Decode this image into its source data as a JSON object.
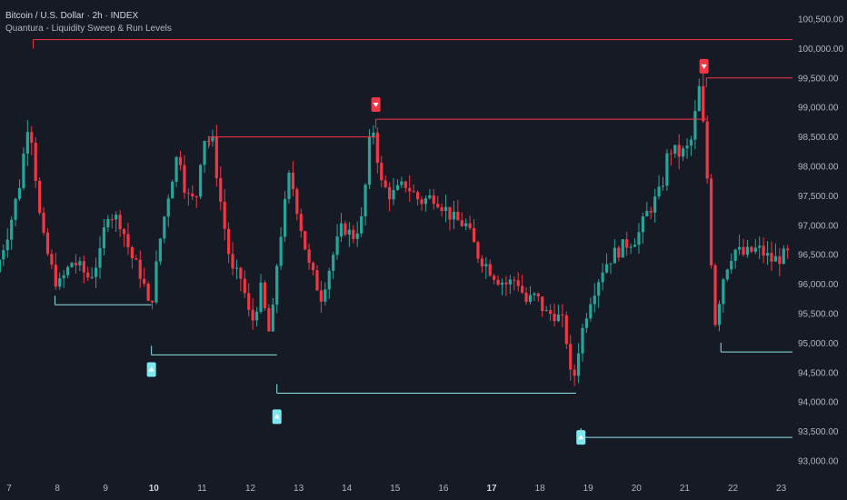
{
  "header": {
    "title": "Bitcoin / U.S. Dollar · 2h · INDEX",
    "subtitle": "Quantura - Liquidity Sweep & Run Levels"
  },
  "colors": {
    "background": "#161a25",
    "up": "#26a69a",
    "down": "#f23645",
    "sweep_high": "#f23645",
    "sweep_low": "#7ee8f0",
    "level_high": "#f23645",
    "level_low": "#8fe3ea",
    "axis_text": "#b2b5be"
  },
  "chart_data": {
    "type": "candlestick",
    "ylim": [
      92900,
      100700
    ],
    "y_ticks": [
      "100,500.00",
      "100,000.00",
      "99,500.00",
      "99,000.00",
      "98,500.00",
      "98,000.00",
      "97,500.00",
      "97,000.00",
      "96,500.00",
      "96,000.00",
      "95,500.00",
      "95,000.00",
      "94,500.00",
      "94,000.00",
      "93,500.00",
      "93,000.00"
    ],
    "x_ticks": [
      {
        "label": "7",
        "bold": false
      },
      {
        "label": "8",
        "bold": false
      },
      {
        "label": "9",
        "bold": false
      },
      {
        "label": "10",
        "bold": true
      },
      {
        "label": "11",
        "bold": false
      },
      {
        "label": "12",
        "bold": false
      },
      {
        "label": "13",
        "bold": false
      },
      {
        "label": "14",
        "bold": false
      },
      {
        "label": "15",
        "bold": false
      },
      {
        "label": "16",
        "bold": false
      },
      {
        "label": "17",
        "bold": true
      },
      {
        "label": "18",
        "bold": false
      },
      {
        "label": "19",
        "bold": false
      },
      {
        "label": "20",
        "bold": false
      },
      {
        "label": "21",
        "bold": false
      },
      {
        "label": "22",
        "bold": false
      },
      {
        "label": "23",
        "bold": false
      }
    ],
    "price_path": [
      [
        6.8,
        96200
      ],
      [
        7.1,
        97000
      ],
      [
        7.3,
        97700
      ],
      [
        7.5,
        98900
      ],
      [
        7.75,
        96900
      ],
      [
        7.95,
        96300
      ],
      [
        8.1,
        95950
      ],
      [
        8.4,
        96400
      ],
      [
        8.75,
        96100
      ],
      [
        9.0,
        96550
      ],
      [
        9.1,
        97250
      ],
      [
        9.4,
        97050
      ],
      [
        9.6,
        96500
      ],
      [
        9.85,
        96100
      ],
      [
        10.0,
        95500
      ],
      [
        10.2,
        96700
      ],
      [
        10.4,
        97600
      ],
      [
        10.6,
        98300
      ],
      [
        10.75,
        97500
      ],
      [
        10.95,
        97400
      ],
      [
        11.1,
        98500
      ],
      [
        11.3,
        98400
      ],
      [
        11.5,
        97200
      ],
      [
        11.7,
        96200
      ],
      [
        11.9,
        96100
      ],
      [
        12.1,
        95300
      ],
      [
        12.3,
        95900
      ],
      [
        12.5,
        95050
      ],
      [
        12.65,
        96500
      ],
      [
        12.9,
        97900
      ],
      [
        13.1,
        97100
      ],
      [
        13.3,
        96300
      ],
      [
        13.55,
        95800
      ],
      [
        13.8,
        96500
      ],
      [
        14.0,
        97000
      ],
      [
        14.2,
        96800
      ],
      [
        14.4,
        97100
      ],
      [
        14.6,
        98800
      ],
      [
        14.8,
        97700
      ],
      [
        15.0,
        97500
      ],
      [
        15.3,
        97700
      ],
      [
        15.6,
        97400
      ],
      [
        15.9,
        97500
      ],
      [
        16.1,
        97300
      ],
      [
        16.3,
        97100
      ],
      [
        16.55,
        97000
      ],
      [
        16.8,
        96500
      ],
      [
        17.0,
        96300
      ],
      [
        17.2,
        96100
      ],
      [
        17.4,
        96000
      ],
      [
        17.6,
        96100
      ],
      [
        17.8,
        95700
      ],
      [
        18.0,
        95800
      ],
      [
        18.2,
        95500
      ],
      [
        18.4,
        95500
      ],
      [
        18.6,
        95300
      ],
      [
        18.75,
        94200
      ],
      [
        18.9,
        95000
      ],
      [
        19.1,
        95700
      ],
      [
        19.4,
        96300
      ],
      [
        19.6,
        96500
      ],
      [
        19.9,
        96700
      ],
      [
        20.1,
        96800
      ],
      [
        20.3,
        97200
      ],
      [
        20.6,
        97600
      ],
      [
        20.75,
        98300
      ],
      [
        21.0,
        98200
      ],
      [
        21.2,
        98350
      ],
      [
        21.4,
        99400
      ],
      [
        21.55,
        97800
      ],
      [
        21.7,
        95300
      ],
      [
        21.9,
        96200
      ],
      [
        22.1,
        96600
      ],
      [
        22.3,
        96500
      ],
      [
        22.6,
        96600
      ],
      [
        22.9,
        96400
      ],
      [
        23.2,
        96500
      ]
    ],
    "levels": [
      {
        "kind": "high",
        "x0": 7.5,
        "x1": 23.5,
        "y": 100150
      },
      {
        "kind": "high",
        "x0": 21.45,
        "x1": 23.5,
        "y": 99500
      },
      {
        "kind": "high",
        "x0": 14.6,
        "x1": 21.45,
        "y": 98800
      },
      {
        "kind": "high",
        "x0": 11.15,
        "x1": 14.6,
        "y": 98500
      },
      {
        "kind": "low",
        "x0": 7.95,
        "x1": 9.95,
        "y": 95650
      },
      {
        "kind": "low",
        "x0": 9.95,
        "x1": 12.55,
        "y": 94800
      },
      {
        "kind": "low",
        "x0": 12.55,
        "x1": 18.75,
        "y": 94150
      },
      {
        "kind": "low",
        "x0": 18.85,
        "x1": 23.5,
        "y": 93400
      },
      {
        "kind": "low",
        "x0": 21.75,
        "x1": 23.5,
        "y": 94850
      }
    ],
    "markers": [
      {
        "dir": "down",
        "x": 14.6,
        "y": 99050
      },
      {
        "dir": "down",
        "x": 21.4,
        "y": 99700
      },
      {
        "dir": "up",
        "x": 9.95,
        "y": 94550
      },
      {
        "dir": "up",
        "x": 12.55,
        "y": 93750
      },
      {
        "dir": "up",
        "x": 18.85,
        "y": 93400
      }
    ]
  }
}
